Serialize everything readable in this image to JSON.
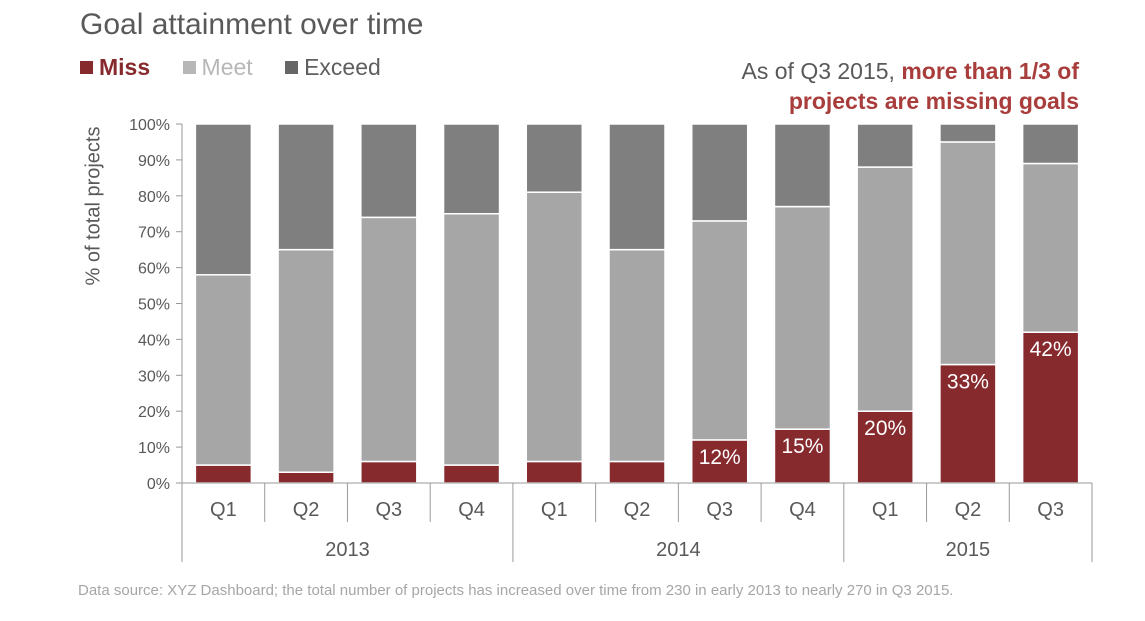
{
  "title": "Goal attainment over time",
  "legend": {
    "miss": "Miss",
    "meet": "Meet",
    "exceed": "Exceed"
  },
  "callout": {
    "prefix": "As of Q3 2015,",
    "highlight_line1": "more than 1/3 of",
    "highlight_line2": "projects are missing goals"
  },
  "footnote": "Data source: XYZ Dashboard; the total number of projects has increased over time from 230 in early 2013 to nearly 270 in Q3 2015.",
  "colors": {
    "miss": "#862a2e",
    "meet": "#a6a6a6",
    "exceed": "#7f7f7f",
    "axis": "#9a9a9a",
    "text": "#595959"
  },
  "chart_data": {
    "type": "bar",
    "stacked": true,
    "ylabel": "% of total projects",
    "ylim": [
      0,
      100
    ],
    "yticks": [
      "0%",
      "10%",
      "20%",
      "30%",
      "40%",
      "50%",
      "60%",
      "70%",
      "80%",
      "90%",
      "100%"
    ],
    "categories": [
      "Q1",
      "Q2",
      "Q3",
      "Q4",
      "Q1",
      "Q2",
      "Q3",
      "Q4",
      "Q1",
      "Q2",
      "Q3"
    ],
    "groups": [
      {
        "label": "2013",
        "count": 4
      },
      {
        "label": "2014",
        "count": 4
      },
      {
        "label": "2015",
        "count": 3
      }
    ],
    "series": [
      {
        "name": "Miss",
        "values": [
          5,
          3,
          6,
          5,
          6,
          6,
          12,
          15,
          20,
          33,
          42
        ]
      },
      {
        "name": "Meet",
        "values": [
          53,
          62,
          68,
          70,
          75,
          59,
          61,
          62,
          68,
          62,
          47
        ]
      },
      {
        "name": "Exceed",
        "values": [
          42,
          35,
          26,
          25,
          19,
          35,
          27,
          23,
          12,
          5,
          11
        ]
      }
    ],
    "data_labels": [
      "",
      "",
      "",
      "",
      "",
      "",
      "12%",
      "15%",
      "20%",
      "33%",
      "42%"
    ]
  }
}
